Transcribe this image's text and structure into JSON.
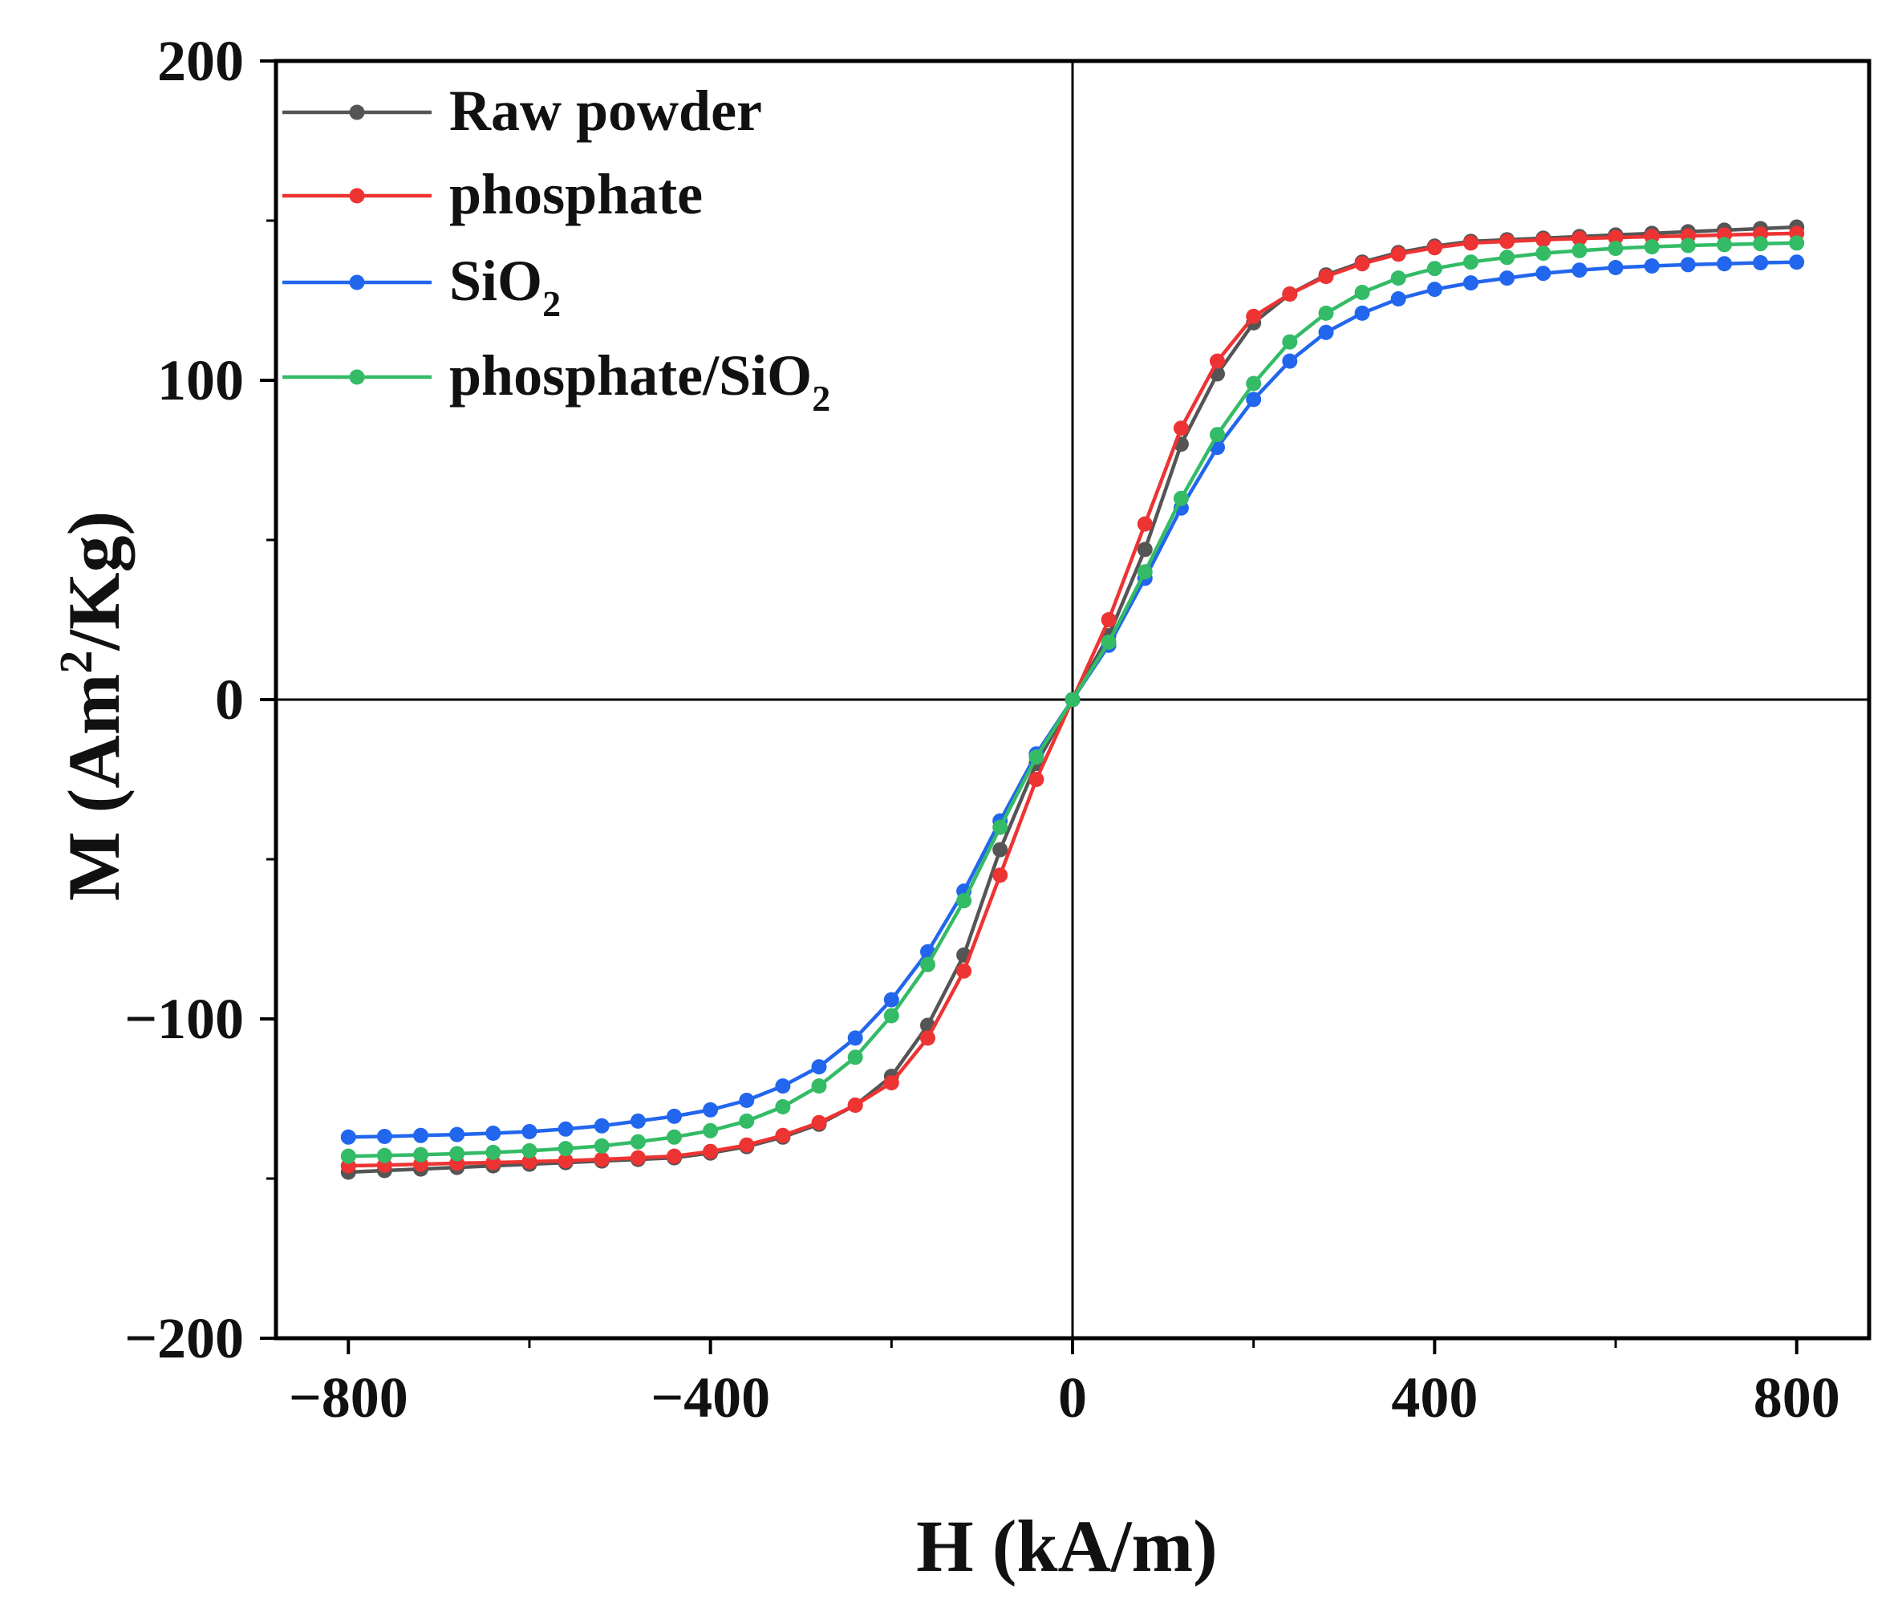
{
  "chart_data": {
    "type": "line",
    "title": "",
    "xlabel": "H (kA/m)",
    "ylabel_parts": {
      "main": "M (Am",
      "sup": "2",
      "rest": "/Kg)"
    },
    "xlim": [
      -880,
      880
    ],
    "ylim": [
      -200,
      200
    ],
    "xticks": [
      -800,
      -400,
      0,
      400,
      800
    ],
    "xtick_labels": [
      "−800",
      "−400",
      "0",
      "400",
      "800"
    ],
    "yticks": [
      -200,
      -100,
      0,
      100,
      200
    ],
    "ytick_labels": [
      "−200",
      "−100",
      "0",
      "100",
      "200"
    ],
    "zero_lines": true,
    "grid": false,
    "legend_position": "top-left",
    "x": [
      -800,
      -760,
      -720,
      -680,
      -640,
      -600,
      -560,
      -520,
      -480,
      -440,
      -400,
      -360,
      -320,
      -280,
      -240,
      -200,
      -160,
      -120,
      -80,
      -40,
      0,
      40,
      80,
      120,
      160,
      200,
      240,
      280,
      320,
      360,
      400,
      440,
      480,
      520,
      560,
      600,
      640,
      680,
      720,
      760,
      800
    ],
    "series": [
      {
        "name": "Raw powder",
        "name_main": "Raw powder",
        "name_sub": "",
        "color": "#555555",
        "values": [
          -148,
          -147.5,
          -147,
          -146.5,
          -146,
          -145.5,
          -145,
          -144.5,
          -144,
          -143.5,
          -142,
          -140,
          -137,
          -133,
          -127,
          -118,
          -102,
          -80,
          -47,
          -20,
          0,
          20,
          47,
          80,
          102,
          118,
          127,
          133,
          137,
          140,
          142,
          143.5,
          144,
          144.5,
          145,
          145.5,
          146,
          146.5,
          147,
          147.5,
          148
        ]
      },
      {
        "name": "phosphate",
        "name_main": "phosphate",
        "name_sub": "",
        "color": "#ee3333",
        "values": [
          -146,
          -145.8,
          -145.5,
          -145.2,
          -145,
          -144.7,
          -144.4,
          -144,
          -143.5,
          -143,
          -141.5,
          -139.5,
          -136.5,
          -132.5,
          -127,
          -120,
          -106,
          -85,
          -55,
          -25,
          0,
          25,
          55,
          85,
          106,
          120,
          127,
          132.5,
          136.5,
          139.5,
          141.5,
          143,
          143.5,
          144,
          144.4,
          144.7,
          145,
          145.2,
          145.5,
          145.8,
          146
        ]
      },
      {
        "name": "SiO2",
        "name_main": "SiO",
        "name_sub": "2",
        "color": "#2266ee",
        "values": [
          -137,
          -136.8,
          -136.5,
          -136.2,
          -135.8,
          -135.3,
          -134.5,
          -133.5,
          -132,
          -130.5,
          -128.5,
          -125.5,
          -121,
          -115,
          -106,
          -94,
          -79,
          -60,
          -38,
          -17,
          0,
          17,
          38,
          60,
          79,
          94,
          106,
          115,
          121,
          125.5,
          128.5,
          130.5,
          132,
          133.5,
          134.5,
          135.3,
          135.8,
          136.2,
          136.5,
          136.8,
          137
        ]
      },
      {
        "name": "phosphate/SiO2",
        "name_main": "phosphate/SiO",
        "name_sub": "2",
        "color": "#33bb66",
        "values": [
          -143,
          -142.8,
          -142.5,
          -142.2,
          -141.8,
          -141.3,
          -140.6,
          -139.8,
          -138.5,
          -137,
          -135,
          -132,
          -127.5,
          -121,
          -112,
          -99,
          -83,
          -63,
          -40,
          -18,
          0,
          18,
          40,
          63,
          83,
          99,
          112,
          121,
          127.5,
          132,
          135,
          137,
          138.5,
          139.8,
          140.6,
          141.3,
          141.8,
          142.2,
          142.5,
          142.8,
          143
        ]
      }
    ]
  }
}
